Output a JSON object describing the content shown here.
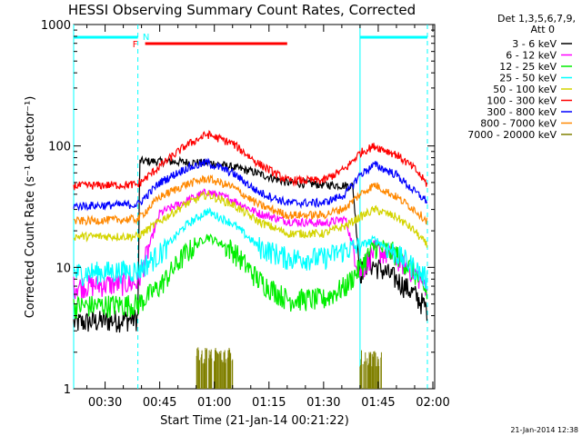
{
  "chart_data": {
    "type": "line",
    "title": "HESSI Observing Summary Count Rates, Corrected",
    "xlabel": "Start Time (21-Jan-14 00:21:22)",
    "ylabel": "Corrected Count Rate (s⁻¹ detector⁻¹)",
    "y_scale": "log",
    "ylim": [
      1,
      1000
    ],
    "xlim": [
      "00:21:22",
      "02:00:30"
    ],
    "x_ticks": [
      "00:30",
      "00:45",
      "01:00",
      "01:15",
      "01:30",
      "01:45",
      "02:00"
    ],
    "y_ticks": [
      "1",
      "10",
      "100",
      "1000"
    ],
    "legend": {
      "title_line1": "Det 1,3,5,6,7,9,",
      "title_line2": "Att 0",
      "placement": "right"
    },
    "flags": {
      "F_label": "F",
      "N_label": "N",
      "flare_interval": [
        "00:40:00",
        "01:20:00"
      ],
      "night_intervals": [
        [
          "00:21:22",
          "00:39:00"
        ],
        [
          "01:40:00",
          "01:58:30"
        ]
      ],
      "boundaries": [
        "00:21:22",
        "00:39:00",
        "01:40:00",
        "01:58:30"
      ]
    },
    "timestamp": "21-Jan-2014 12:38",
    "series": [
      {
        "name": "3 - 6 keV",
        "color": "#000000",
        "x": [
          "00:21:22",
          "00:39:00",
          "00:39:30",
          "00:50:00",
          "01:00:00",
          "01:10:00",
          "01:20:00",
          "01:30:00",
          "01:38:00",
          "01:40:00",
          "01:42:00",
          "01:45:00",
          "01:50:00",
          "01:55:00",
          "01:58:30"
        ],
        "values": [
          3.5,
          3.8,
          75,
          74,
          72,
          62,
          50,
          48,
          47,
          9,
          11,
          10,
          8,
          6,
          4.5
        ]
      },
      {
        "name": "6 - 12 keV",
        "color": "#ff00ff",
        "x": [
          "00:21:22",
          "00:39:00",
          "00:45:00",
          "00:52:00",
          "00:58:00",
          "01:05:00",
          "01:12:00",
          "01:20:00",
          "01:30:00",
          "01:36:00",
          "01:40:00",
          "01:44:00",
          "01:50:00",
          "01:55:00",
          "01:58:30"
        ],
        "values": [
          7,
          7.5,
          28,
          35,
          42,
          36,
          28,
          24,
          23,
          25,
          9,
          14,
          12,
          9,
          7
        ]
      },
      {
        "name": "12 - 25 keV",
        "color": "#00ee00",
        "x": [
          "00:21:22",
          "00:39:00",
          "00:45:00",
          "00:52:00",
          "00:58:00",
          "01:05:00",
          "01:12:00",
          "01:20:00",
          "01:30:00",
          "01:36:00",
          "01:40:00",
          "01:44:00",
          "01:50:00",
          "01:55:00",
          "01:58:30"
        ],
        "values": [
          4.8,
          5,
          7,
          13,
          18,
          14,
          8,
          5.5,
          5.5,
          7,
          10,
          15,
          13,
          9,
          6
        ]
      },
      {
        "name": "25 - 50 keV",
        "color": "#00ffff",
        "x": [
          "00:21:22",
          "00:39:00",
          "00:45:00",
          "00:52:00",
          "00:58:00",
          "01:05:00",
          "01:12:00",
          "01:20:00",
          "01:30:00",
          "01:36:00",
          "01:40:00",
          "01:44:00",
          "01:50:00",
          "01:55:00",
          "01:58:30"
        ],
        "values": [
          9,
          9.5,
          13,
          22,
          29,
          23,
          15,
          12,
          12,
          14,
          15,
          17,
          13,
          10,
          8
        ]
      },
      {
        "name": "50 - 100 keV",
        "color": "#d4d400",
        "x": [
          "00:21:22",
          "00:39:00",
          "00:45:00",
          "00:52:00",
          "00:58:00",
          "01:05:00",
          "01:12:00",
          "01:20:00",
          "01:30:00",
          "01:36:00",
          "01:40:00",
          "01:44:00",
          "01:50:00",
          "01:55:00",
          "01:58:30"
        ],
        "values": [
          18,
          18,
          24,
          33,
          40,
          33,
          24,
          19,
          19,
          22,
          26,
          30,
          26,
          20,
          15
        ]
      },
      {
        "name": "100 - 300 keV",
        "color": "#ff0000",
        "x": [
          "00:21:22",
          "00:39:00",
          "00:45:00",
          "00:52:00",
          "00:58:00",
          "01:05:00",
          "01:12:00",
          "01:20:00",
          "01:30:00",
          "01:36:00",
          "01:40:00",
          "01:44:00",
          "01:50:00",
          "01:55:00",
          "01:58:30"
        ],
        "values": [
          47,
          48,
          68,
          100,
          125,
          105,
          72,
          52,
          52,
          65,
          88,
          100,
          85,
          65,
          48
        ]
      },
      {
        "name": "300 - 800 keV",
        "color": "#0000ff",
        "x": [
          "00:21:22",
          "00:39:00",
          "00:45:00",
          "00:52:00",
          "00:58:00",
          "01:05:00",
          "01:12:00",
          "01:20:00",
          "01:30:00",
          "01:36:00",
          "01:40:00",
          "01:44:00",
          "01:50:00",
          "01:55:00",
          "01:58:30"
        ],
        "values": [
          32,
          33,
          50,
          65,
          73,
          60,
          42,
          34,
          34,
          40,
          58,
          70,
          58,
          42,
          35
        ]
      },
      {
        "name": "800 - 7000 keV",
        "color": "#ff8800",
        "x": [
          "00:21:22",
          "00:39:00",
          "00:45:00",
          "00:52:00",
          "00:58:00",
          "01:05:00",
          "01:12:00",
          "01:20:00",
          "01:30:00",
          "01:36:00",
          "01:40:00",
          "01:44:00",
          "01:50:00",
          "01:55:00",
          "01:58:30"
        ],
        "values": [
          24,
          25,
          38,
          48,
          54,
          46,
          33,
          27,
          27,
          31,
          40,
          48,
          38,
          30,
          24
        ]
      },
      {
        "name": "7000 - 20000 keV",
        "color": "#808000",
        "bursts": [
          [
            "00:55:00",
            "01:05:00",
            2.0
          ],
          [
            "01:40:00",
            "01:46:00",
            1.9
          ]
        ]
      }
    ]
  }
}
